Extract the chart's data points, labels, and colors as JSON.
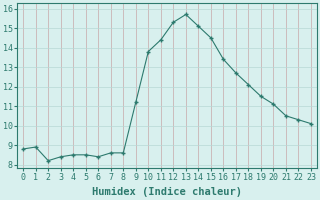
{
  "x": [
    0,
    1,
    2,
    3,
    4,
    5,
    6,
    7,
    8,
    9,
    10,
    11,
    12,
    13,
    14,
    15,
    16,
    17,
    18,
    19,
    20,
    21,
    22,
    23
  ],
  "y": [
    8.8,
    8.9,
    8.2,
    8.4,
    8.5,
    8.5,
    8.4,
    8.6,
    8.6,
    11.2,
    13.8,
    14.4,
    15.3,
    15.7,
    15.1,
    14.5,
    13.4,
    12.7,
    12.1,
    11.5,
    11.1,
    10.5,
    10.3,
    10.1
  ],
  "line_color": "#2d7a6e",
  "marker": "+",
  "marker_size": 3.5,
  "bg_color": "#d8f0ee",
  "grid_color_v": "#c8a8a8",
  "grid_color_h": "#b8d8d5",
  "xlabel": "Humidex (Indice chaleur)",
  "xlabel_fontsize": 7.5,
  "tick_fontsize": 6,
  "xlim": [
    -0.5,
    23.5
  ],
  "ylim": [
    7.8,
    16.3
  ],
  "yticks": [
    8,
    9,
    10,
    11,
    12,
    13,
    14,
    15,
    16
  ],
  "xticks": [
    0,
    1,
    2,
    3,
    4,
    5,
    6,
    7,
    8,
    9,
    10,
    11,
    12,
    13,
    14,
    15,
    16,
    17,
    18,
    19,
    20,
    21,
    22,
    23
  ],
  "line_width": 0.8,
  "spine_color": "#2d7a6e",
  "tick_color": "#2d7a6e",
  "label_color": "#2d7a6e"
}
